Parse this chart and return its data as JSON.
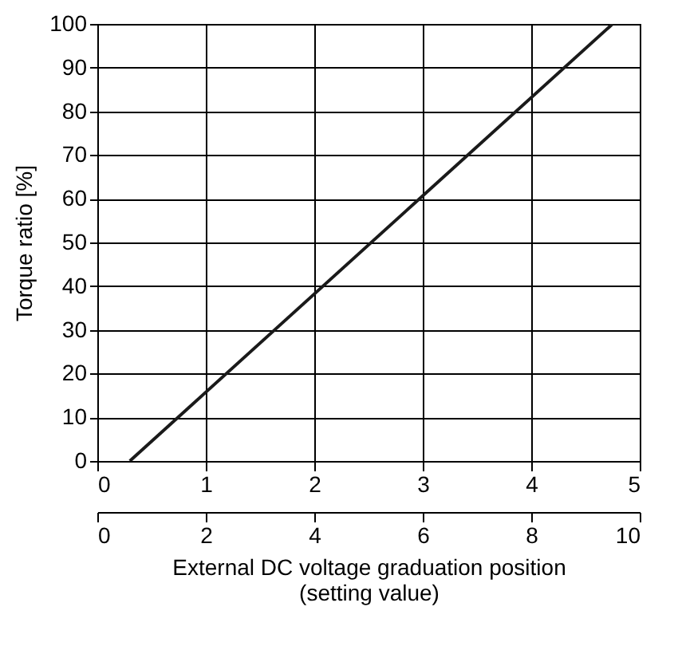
{
  "chart_data": {
    "type": "line",
    "xlabel": "External DC voltage graduation position\n(setting value)",
    "ylabel": "Torque ratio [%]",
    "x": [
      0.3,
      4.75
    ],
    "series": [
      {
        "color": "#1a1a1a",
        "values": [
          0,
          100
        ]
      }
    ],
    "xlim": [
      0,
      5
    ],
    "xticks": [
      0,
      1,
      2,
      3,
      4,
      5
    ],
    "x2lim": [
      0,
      10
    ],
    "x2ticks": [
      0,
      2,
      4,
      6,
      8,
      10
    ],
    "ylim": [
      0,
      100
    ],
    "yticks": [
      0,
      10,
      20,
      30,
      40,
      50,
      60,
      70,
      80,
      90,
      100
    ],
    "grid": true,
    "marker": "none",
    "line_style": "solid"
  }
}
